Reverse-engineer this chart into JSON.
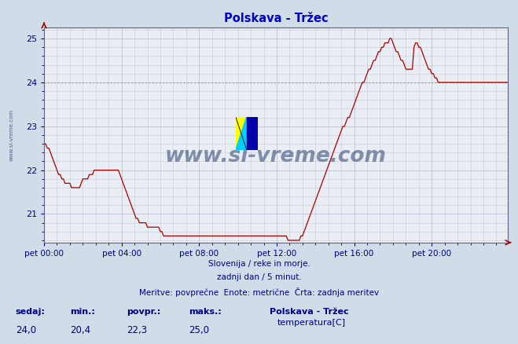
{
  "title": "Polskava - Tržec",
  "bg_color": "#d0dce8",
  "plot_bg_color": "#e8eef4",
  "line_color": "#aa0000",
  "grid_color": "#c0b8d0",
  "avg_line_color": "#dd4444",
  "xlabel_color": "#000080",
  "title_color": "#0000cc",
  "text_color": "#000080",
  "ylim": [
    20.35,
    25.25
  ],
  "yticks": [
    21,
    22,
    23,
    24,
    25
  ],
  "xlim": [
    0,
    287
  ],
  "xtick_positions": [
    0,
    48,
    96,
    144,
    192,
    240
  ],
  "xtick_labels": [
    "pet 00:00",
    "pet 04:00",
    "pet 08:00",
    "pet 12:00",
    "pet 16:00",
    "pet 20:00"
  ],
  "avg_value": 24.0,
  "footer_line1": "Slovenija / reke in morje.",
  "footer_line2": "zadnji dan / 5 minut.",
  "footer_line3": "Meritve: povprečne  Enote: metrične  Črta: zadnja meritev",
  "stat_labels": [
    "sedaj:",
    "min.:",
    "povpr.:",
    "maks.:"
  ],
  "stat_values": [
    "24,0",
    "20,4",
    "22,3",
    "25,0"
  ],
  "legend_label": "temperatura[C]",
  "legend_title": "Polskava - Tržec",
  "watermark": "www.si-vreme.com",
  "watermark_color": "#1a3060",
  "side_text": "www.si-vreme.com",
  "temperature_data": [
    22.6,
    22.6,
    22.5,
    22.5,
    22.4,
    22.3,
    22.2,
    22.1,
    22.0,
    21.9,
    21.9,
    21.8,
    21.8,
    21.7,
    21.7,
    21.7,
    21.7,
    21.6,
    21.6,
    21.6,
    21.6,
    21.6,
    21.6,
    21.7,
    21.8,
    21.8,
    21.8,
    21.8,
    21.9,
    21.9,
    21.9,
    22.0,
    22.0,
    22.0,
    22.0,
    22.0,
    22.0,
    22.0,
    22.0,
    22.0,
    22.0,
    22.0,
    22.0,
    22.0,
    22.0,
    22.0,
    22.0,
    21.9,
    21.8,
    21.7,
    21.6,
    21.5,
    21.4,
    21.3,
    21.2,
    21.1,
    21.0,
    20.9,
    20.9,
    20.8,
    20.8,
    20.8,
    20.8,
    20.8,
    20.7,
    20.7,
    20.7,
    20.7,
    20.7,
    20.7,
    20.7,
    20.7,
    20.6,
    20.6,
    20.5,
    20.5,
    20.5,
    20.5,
    20.5,
    20.5,
    20.5,
    20.5,
    20.5,
    20.5,
    20.5,
    20.5,
    20.5,
    20.5,
    20.5,
    20.5,
    20.5,
    20.5,
    20.5,
    20.5,
    20.5,
    20.5,
    20.5,
    20.5,
    20.5,
    20.5,
    20.5,
    20.5,
    20.5,
    20.5,
    20.5,
    20.5,
    20.5,
    20.5,
    20.5,
    20.5,
    20.5,
    20.5,
    20.5,
    20.5,
    20.5,
    20.5,
    20.5,
    20.5,
    20.5,
    20.5,
    20.5,
    20.5,
    20.5,
    20.5,
    20.5,
    20.5,
    20.5,
    20.5,
    20.5,
    20.5,
    20.5,
    20.5,
    20.5,
    20.5,
    20.5,
    20.5,
    20.5,
    20.5,
    20.5,
    20.5,
    20.5,
    20.5,
    20.5,
    20.5,
    20.5,
    20.5,
    20.5,
    20.5,
    20.5,
    20.5,
    20.5,
    20.4,
    20.4,
    20.4,
    20.4,
    20.4,
    20.4,
    20.4,
    20.4,
    20.5,
    20.5,
    20.6,
    20.7,
    20.8,
    20.9,
    21.0,
    21.1,
    21.2,
    21.3,
    21.4,
    21.5,
    21.6,
    21.7,
    21.8,
    21.9,
    22.0,
    22.1,
    22.2,
    22.3,
    22.4,
    22.5,
    22.6,
    22.7,
    22.8,
    22.9,
    23.0,
    23.0,
    23.1,
    23.2,
    23.2,
    23.3,
    23.4,
    23.5,
    23.6,
    23.7,
    23.8,
    23.9,
    24.0,
    24.0,
    24.1,
    24.2,
    24.3,
    24.3,
    24.4,
    24.5,
    24.5,
    24.6,
    24.7,
    24.7,
    24.8,
    24.8,
    24.9,
    24.9,
    24.9,
    25.0,
    25.0,
    24.9,
    24.8,
    24.7,
    24.7,
    24.6,
    24.5,
    24.5,
    24.4,
    24.3,
    24.3,
    24.3,
    24.3,
    24.3,
    24.8,
    24.9,
    24.9,
    24.8,
    24.8,
    24.7,
    24.6,
    24.5,
    24.4,
    24.3,
    24.3,
    24.2,
    24.2,
    24.1,
    24.1,
    24.0,
    24.0,
    24.0,
    24.0,
    24.0,
    24.0,
    24.0,
    24.0,
    24.0,
    24.0,
    24.0,
    24.0,
    24.0,
    24.0,
    24.0,
    24.0,
    24.0,
    24.0,
    24.0,
    24.0,
    24.0,
    24.0,
    24.0,
    24.0,
    24.0,
    24.0,
    24.0,
    24.0,
    24.0,
    24.0,
    24.0,
    24.0,
    24.0,
    24.0,
    24.0,
    24.0,
    24.0,
    24.0,
    24.0,
    24.0,
    24.0,
    24.0,
    24.0,
    24.0
  ]
}
